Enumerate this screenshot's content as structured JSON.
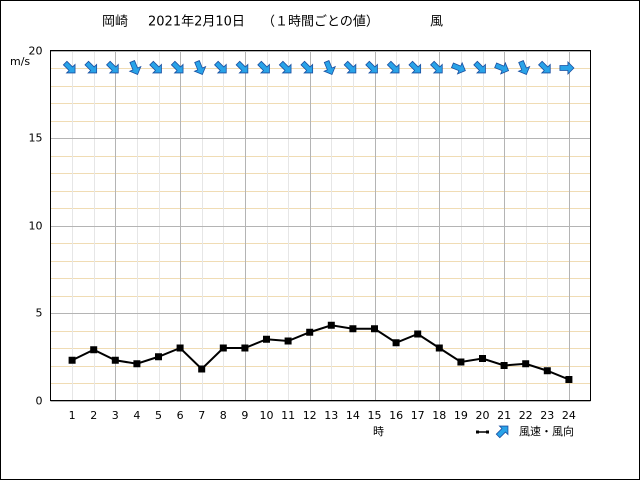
{
  "chart_data": {
    "type": "line",
    "title": [
      "岡崎",
      "2021年2月10日",
      "（１時間ごとの値）",
      "風"
    ],
    "y_unit": "m/s",
    "x_label": "時",
    "categories": [
      "1",
      "2",
      "3",
      "4",
      "5",
      "6",
      "7",
      "8",
      "9",
      "10",
      "11",
      "12",
      "13",
      "14",
      "15",
      "16",
      "17",
      "18",
      "19",
      "20",
      "21",
      "22",
      "23",
      "24"
    ],
    "series": [
      {
        "name": "風速・風向",
        "color": "#000000",
        "values": [
          2.3,
          2.9,
          2.3,
          2.1,
          2.5,
          3.0,
          1.8,
          3.0,
          3.0,
          3.5,
          3.4,
          3.9,
          4.3,
          4.1,
          4.1,
          3.3,
          3.8,
          3.0,
          2.2,
          2.4,
          2.0,
          2.1,
          1.7,
          1.2
        ],
        "direction_deg": [
          315,
          315,
          315,
          337.5,
          315,
          315,
          337.5,
          315,
          315,
          315,
          315,
          315,
          337.5,
          315,
          315,
          315,
          315,
          315,
          292.5,
          315,
          292.5,
          337.5,
          315,
          270
        ],
        "arrow_color": "#29a3e8",
        "arrow_value": 19
      }
    ],
    "ylim": [
      0,
      20
    ],
    "yticks": [
      0,
      5,
      10,
      15,
      20
    ],
    "minor_yticks": [
      1,
      2,
      3,
      4,
      6,
      7,
      8,
      9,
      11,
      12,
      13,
      14,
      16,
      17,
      18,
      19
    ],
    "major_x_every": 3,
    "grid": true
  }
}
